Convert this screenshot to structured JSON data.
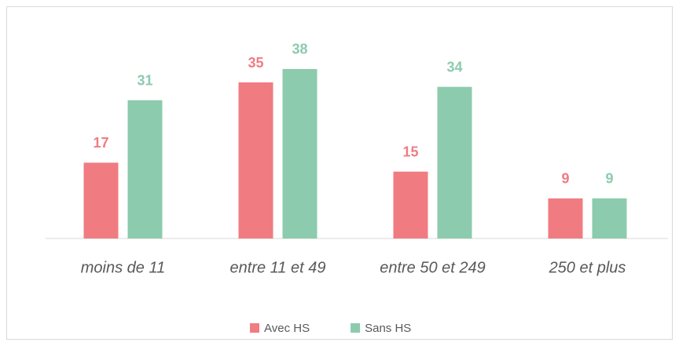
{
  "chart_data": {
    "type": "bar",
    "categories": [
      "moins de 11",
      "entre 11 et 49",
      "entre 50 et 249",
      "250 et plus"
    ],
    "series": [
      {
        "name": "Avec HS",
        "color": "#f07c82",
        "values": [
          17,
          35,
          15,
          9
        ]
      },
      {
        "name": "Sans HS",
        "color": "#8ccbad",
        "values": [
          31,
          38,
          34,
          9
        ]
      }
    ],
    "ylim": [
      0,
      40
    ],
    "legend": "bottom"
  }
}
